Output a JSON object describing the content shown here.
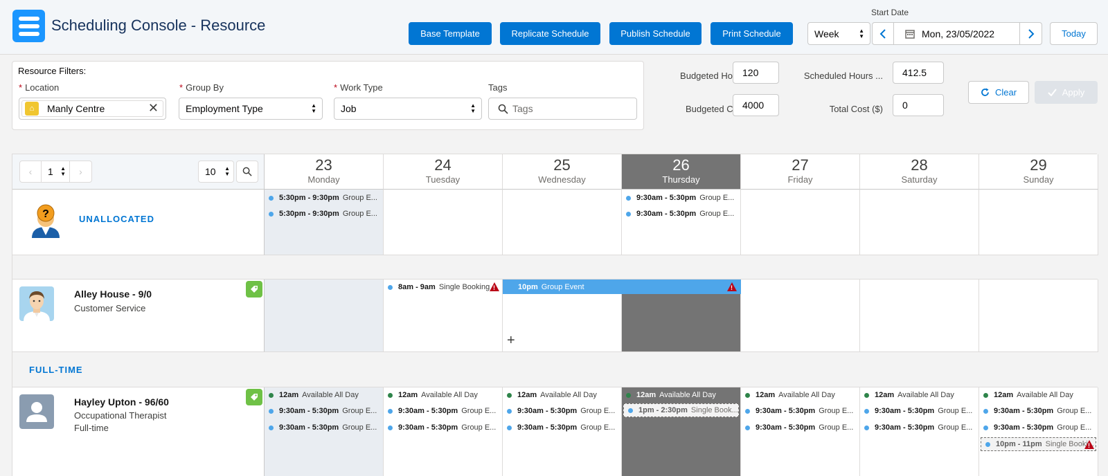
{
  "header": {
    "title": "Scheduling Console - Resource",
    "buttons": {
      "base_template": "Base Template",
      "replicate": "Replicate Schedule",
      "publish": "Publish Schedule",
      "print": "Print Schedule"
    },
    "start_date_label": "Start Date",
    "view_select": "Week",
    "date_value": "Mon, 23/05/2022",
    "today": "Today",
    "accent": "#0176d3"
  },
  "filters": {
    "title": "Resource Filters:",
    "location_label": "Location",
    "location_value": "Manly Centre",
    "group_by_label": "Group By",
    "group_by_value": "Employment Type",
    "work_type_label": "Work Type",
    "work_type_value": "Job",
    "tags_label": "Tags",
    "tags_placeholder": "Tags"
  },
  "summary": {
    "budgeted_hours_label": "Budgeted Hours",
    "budgeted_hours": "120",
    "budgeted_cost_label": "Budgeted Cost",
    "budgeted_cost": "4000",
    "scheduled_hours_label": "Scheduled Hours ...",
    "scheduled_hours": "412.5",
    "total_cost_label": "Total Cost ($)",
    "total_cost": "0",
    "clear": "Clear",
    "apply": "Apply"
  },
  "pager": {
    "page": "1",
    "page_size": "10"
  },
  "days": [
    {
      "num": "23",
      "name": "Monday"
    },
    {
      "num": "24",
      "name": "Tuesday"
    },
    {
      "num": "25",
      "name": "Wednesday"
    },
    {
      "num": "26",
      "name": "Thursday"
    },
    {
      "num": "27",
      "name": "Friday"
    },
    {
      "num": "28",
      "name": "Saturday"
    },
    {
      "num": "29",
      "name": "Sunday"
    }
  ],
  "unallocated": {
    "label": "UNALLOCATED",
    "mon": [
      {
        "time": "5:30pm - 9:30pm",
        "desc": "Group E..."
      },
      {
        "time": "5:30pm - 9:30pm",
        "desc": "Group E..."
      }
    ],
    "thu": [
      {
        "time": "9:30am - 5:30pm",
        "desc": "Group E..."
      },
      {
        "time": "9:30am - 5:30pm",
        "desc": "Group E..."
      }
    ]
  },
  "alley": {
    "name": "Alley House - 9/0",
    "role": "Customer Service",
    "tue": {
      "time": "8am - 9am",
      "desc": "Single Booking"
    },
    "wed_thu": {
      "time": "10pm",
      "desc": "Group Event"
    },
    "add": "+"
  },
  "fulltime_label": "FULL-TIME",
  "hayley": {
    "name": "Hayley Upton - 96/60",
    "role": "Occupational Therapist",
    "type": "Full-time",
    "avail": {
      "time": "12am",
      "desc": "Available All Day"
    },
    "group": {
      "time": "9:30am - 5:30pm",
      "desc": "Group E..."
    },
    "thu_single": {
      "time": "1pm - 2:30pm",
      "desc": "Single Book..."
    },
    "sun_single": {
      "time": "10pm - 11pm",
      "desc": "Single Booki..."
    }
  }
}
